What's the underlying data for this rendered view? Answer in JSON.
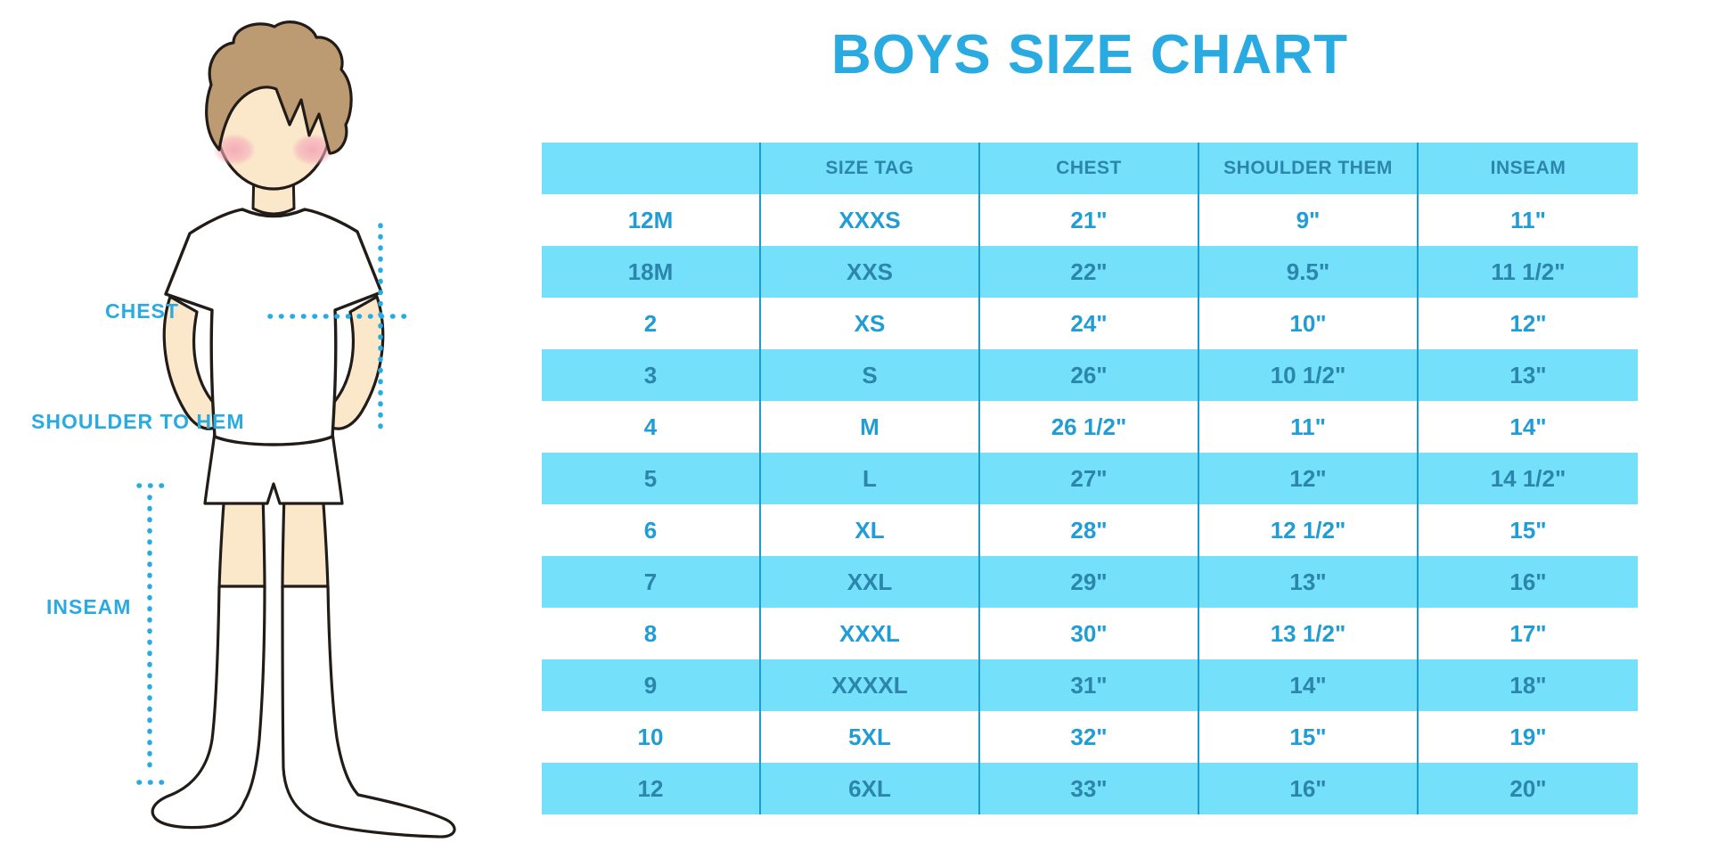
{
  "title": "BOYS SIZE CHART",
  "figure": {
    "description": "cartoon boy in white t-shirt, white shorts and white knee socks with dotted measurement guides",
    "labels": {
      "chest": "CHEST",
      "shoulder_to_hem": "SHOULDER TO HEM",
      "inseam": "INSEAM"
    }
  },
  "colors": {
    "accent_blue": "#29ABE2",
    "table_row_blue": "#74E0FA",
    "table_grid_blue": "#1E9BCE",
    "header_text_blue": "#2C86AC",
    "white_row_text_blue": "#219DD6",
    "skin": "#FBE8CB",
    "hair_brown": "#BD9B72",
    "blush_pink": "#F4A9B8"
  },
  "chart_data": {
    "type": "table",
    "title": "BOYS SIZE CHART",
    "columns": [
      "",
      "SIZE TAG",
      "CHEST",
      "SHOULDER THEM",
      "INSEAM"
    ],
    "rows": [
      [
        "12M",
        "XXXS",
        "21\"",
        "9\"",
        "11\""
      ],
      [
        "18M",
        "XXS",
        "22\"",
        "9.5\"",
        "11 1/2\""
      ],
      [
        "2",
        "XS",
        "24\"",
        "10\"",
        "12\""
      ],
      [
        "3",
        "S",
        "26\"",
        "10 1/2\"",
        "13\""
      ],
      [
        "4",
        "M",
        "26 1/2\"",
        "11\"",
        "14\""
      ],
      [
        "5",
        "L",
        "27\"",
        "12\"",
        "14 1/2\""
      ],
      [
        "6",
        "XL",
        "28\"",
        "12 1/2\"",
        "15\""
      ],
      [
        "7",
        "XXL",
        "29\"",
        "13\"",
        "16\""
      ],
      [
        "8",
        "XXXL",
        "30\"",
        "13 1/2\"",
        "17\""
      ],
      [
        "9",
        "XXXXL",
        "31\"",
        "14\"",
        "18\""
      ],
      [
        "10",
        "5XL",
        "32\"",
        "15\"",
        "19\""
      ],
      [
        "12",
        "6XL",
        "33\"",
        "16\"",
        "20\""
      ]
    ],
    "row_striping": "alternating white / light-blue, first data row white",
    "legend_position": "none",
    "grid": "vertical column separators only"
  }
}
